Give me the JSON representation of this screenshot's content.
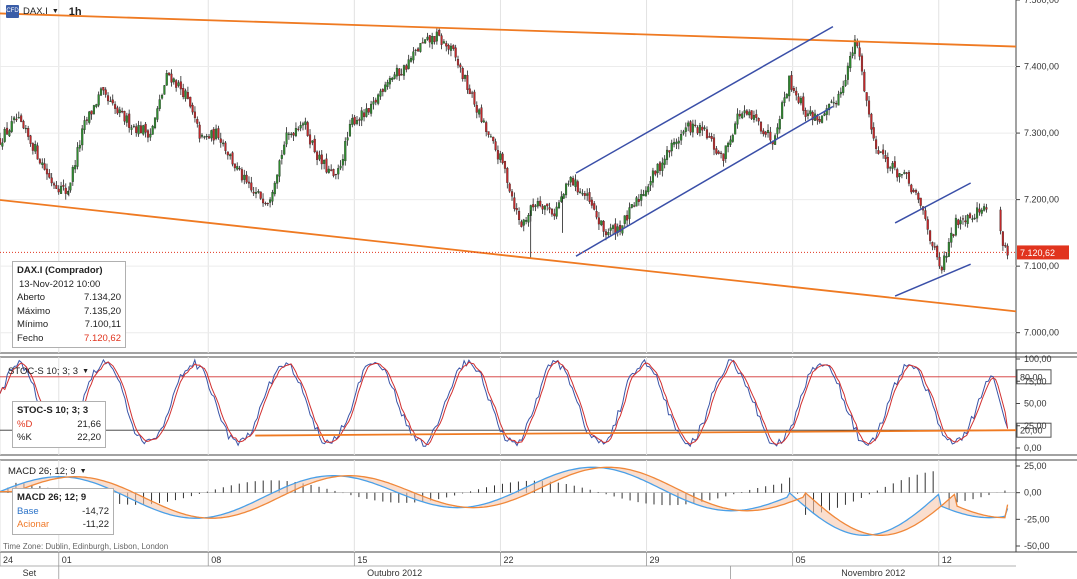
{
  "header": {
    "symbol": "DAX.I",
    "timeframe": "1h",
    "logo_text": "CFD"
  },
  "info_box": {
    "title": "DAX.I (Comprador)",
    "date": "13-Nov-2012 10:00",
    "rows": [
      {
        "label": "Aberto",
        "value": "7.134,20"
      },
      {
        "label": "Máximo",
        "value": "7.135,20"
      },
      {
        "label": "Mínimo",
        "value": "7.100,11"
      },
      {
        "label": "Fecho",
        "value": "7.120,62"
      }
    ]
  },
  "stoch_header": "STOC-S 10; 3; 3",
  "stoch_box": {
    "title": "STOC-S 10; 3; 3",
    "rows": [
      {
        "label": "%D",
        "value": "21,66"
      },
      {
        "label": "%K",
        "value": "22,20"
      }
    ]
  },
  "macd_header": "MACD 26; 12; 9",
  "macd_box": {
    "title": "MACD 26; 12; 9",
    "rows": [
      {
        "label": "Base",
        "value": "-14,72"
      },
      {
        "label": "Acionar",
        "value": "-11,22"
      }
    ]
  },
  "timezone": "Time Zone: Dublin, Edinburgh, Lisbon, London",
  "colors": {
    "up": "#2f8a2f",
    "down": "#c0282a",
    "trend_orange": "#ef7a22",
    "channel_blue": "#3a4fa8",
    "stoch_red": "#d23030",
    "macd_blue": "#4aa0e8",
    "macd_orange": "#f0883a"
  },
  "chart_data": [
    {
      "type": "candlestick",
      "title": "DAX.I 1h",
      "ylim": [
        6980,
        7500
      ],
      "y_ticks": [
        7000,
        7100,
        7200,
        7300,
        7400,
        7500
      ],
      "y_tick_labels": [
        "7.000,00",
        "7.100,00",
        "7.200,00",
        "7.300,00",
        "7.400,00",
        "7.500,00"
      ],
      "last_price": 7120.62,
      "last_price_label": "7.120,62",
      "x_ticks": [
        {
          "label": "24",
          "t": 0
        },
        {
          "label": "01",
          "t": 3.5
        },
        {
          "label": "08",
          "t": 12.4
        },
        {
          "label": "15",
          "t": 21.1
        },
        {
          "label": "22",
          "t": 29.8
        },
        {
          "label": "29",
          "t": 38.5
        },
        {
          "label": "05",
          "t": 47.2
        },
        {
          "label": "12",
          "t": 55.9
        }
      ],
      "month_labels": [
        "Set",
        "Outubro 2012",
        "Novembro 2012"
      ],
      "path": [
        [
          0,
          7290
        ],
        [
          1,
          7320
        ],
        [
          2,
          7280
        ],
        [
          3,
          7230
        ],
        [
          4,
          7210
        ],
        [
          5,
          7310
        ],
        [
          6,
          7360
        ],
        [
          7,
          7330
        ],
        [
          8,
          7310
        ],
        [
          9,
          7300
        ],
        [
          10,
          7390
        ],
        [
          11,
          7360
        ],
        [
          12,
          7290
        ],
        [
          13,
          7300
        ],
        [
          14,
          7250
        ],
        [
          15,
          7210
        ],
        [
          16,
          7200
        ],
        [
          17,
          7290
        ],
        [
          18,
          7320
        ],
        [
          19,
          7260
        ],
        [
          20,
          7230
        ],
        [
          21,
          7320
        ],
        [
          22,
          7330
        ],
        [
          23,
          7380
        ],
        [
          24,
          7395
        ],
        [
          25,
          7430
        ],
        [
          26,
          7445
        ],
        [
          27,
          7420
        ],
        [
          28,
          7360
        ],
        [
          29,
          7300
        ],
        [
          30,
          7250
        ],
        [
          31,
          7160
        ],
        [
          32,
          7200
        ],
        [
          33,
          7180
        ],
        [
          34,
          7230
        ],
        [
          35,
          7200
        ],
        [
          36,
          7150
        ],
        [
          37,
          7160
        ],
        [
          38,
          7200
        ],
        [
          39,
          7240
        ],
        [
          40,
          7280
        ],
        [
          41,
          7310
        ],
        [
          42,
          7300
        ],
        [
          43,
          7260
        ],
        [
          44,
          7330
        ],
        [
          45,
          7320
        ],
        [
          46,
          7290
        ],
        [
          47,
          7380
        ],
        [
          48,
          7330
        ],
        [
          49,
          7320
        ],
        [
          50,
          7360
        ],
        [
          51,
          7440
        ],
        [
          52,
          7290
        ],
        [
          53,
          7250
        ],
        [
          54,
          7230
        ],
        [
          55,
          7180
        ],
        [
          56,
          7090
        ],
        [
          57,
          7170
        ],
        [
          58,
          7180
        ],
        [
          59,
          7190
        ],
        [
          60,
          7120
        ]
      ],
      "trendlines": [
        {
          "name": "upper-resistance",
          "color": "orange",
          "points": [
            [
              -0.2,
              7480
            ],
            [
              60.5,
              7430
            ]
          ]
        },
        {
          "name": "lower-support",
          "color": "orange",
          "points": [
            [
              -0.2,
              7200
            ],
            [
              60.5,
              7032
            ]
          ]
        },
        {
          "name": "channel-top",
          "color": "blue",
          "points": [
            [
              34.3,
              7240
            ],
            [
              49.6,
              7460
            ]
          ]
        },
        {
          "name": "channel-bottom",
          "color": "blue",
          "points": [
            [
              34.3,
              7115
            ],
            [
              49.6,
              7340
            ]
          ]
        },
        {
          "name": "small-channel-top",
          "color": "blue",
          "points": [
            [
              53.3,
              7165
            ],
            [
              57.8,
              7225
            ]
          ]
        },
        {
          "name": "small-channel-bottom",
          "color": "blue",
          "points": [
            [
              53.3,
              7055
            ],
            [
              57.8,
              7103
            ]
          ]
        }
      ]
    },
    {
      "type": "line",
      "title": "STOC-S 10; 3; 3",
      "ylim": [
        -5,
        105
      ],
      "y_ticks": [
        0,
        25,
        50,
        75,
        100
      ],
      "y_tick_labels": [
        "0,00",
        "25,00",
        "50,00",
        "75,00",
        "100,00"
      ],
      "hlines": [
        {
          "value": 80,
          "label": "80,00"
        },
        {
          "value": 20,
          "label": "20,00"
        }
      ],
      "series": [
        {
          "name": "%D",
          "last": 21.66
        },
        {
          "name": "%K",
          "last": 22.2
        }
      ]
    },
    {
      "type": "line",
      "title": "MACD 26; 12; 9",
      "ylim": [
        -55,
        32
      ],
      "y_ticks": [
        -50,
        -25,
        0,
        25
      ],
      "y_tick_labels": [
        "-50,00",
        "-25,00",
        "0,00",
        "25,00"
      ],
      "series": [
        {
          "name": "Base",
          "last": -14.72
        },
        {
          "name": "Acionar",
          "last": -11.22
        }
      ]
    }
  ]
}
